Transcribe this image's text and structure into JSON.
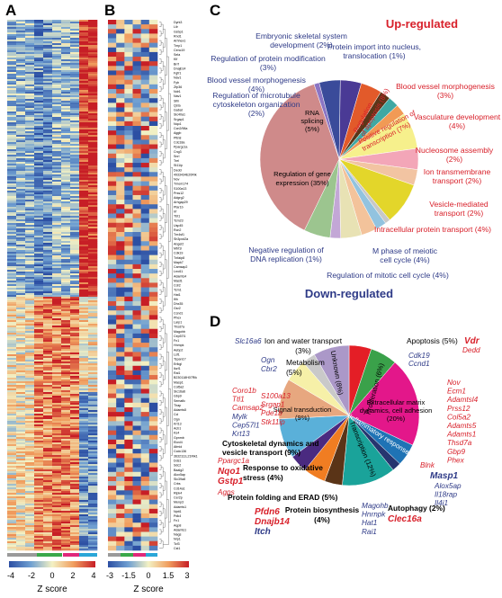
{
  "panels": {
    "a": "A",
    "b": "B",
    "c": "C",
    "d": "D"
  },
  "colors": {
    "up": "#d8202a",
    "down": "#2e3a87",
    "text": "#000000"
  },
  "heatmap_a": {
    "colorbar_ticks": [
      "-4",
      "-2",
      "0",
      "2",
      "4"
    ],
    "colorbar_title": "Z score",
    "group_bar_colors": [
      "#9a9a9a",
      "#3aa84a",
      "#e0287a",
      "#2aa6d8"
    ]
  },
  "heatmap_b": {
    "colorbar_ticks": [
      "-3",
      "-1.5",
      "0",
      "1.5",
      "3"
    ],
    "colorbar_title": "Z score",
    "genes": [
      "Dyrk3",
      "Lilr",
      "Gsbp1",
      "Rnd1",
      "Arhhex1",
      "Tmp1",
      "Cenc19",
      "Sela",
      "Klf",
      "Brrf",
      "Dnajb14",
      "Fgfr1",
      "Nav1",
      "Fyb",
      "Zfp36",
      "Ndr1",
      "Nav1",
      "Slfn",
      "Qsta",
      "Gabat",
      "Slc40a1",
      "Srgap1",
      "Nqo1",
      "Ccn2/98a",
      "Aggb",
      "Pttn8",
      "Cdc18a",
      "Ppargc1a",
      "Cng3",
      "Snrl",
      "Trel",
      "St11ip",
      "Dedd",
      "4933434E20Rik",
      "Nov",
      "Tmem174",
      "S100a13",
      "Prss12",
      "Adgrg2",
      "Arhgap29",
      "Ptar1b",
      "Irf",
      "Tbt1",
      "Tcm23",
      "Usp45",
      "Rcn2",
      "Tm4sf1",
      "Sh3pxd2a",
      "Angel2",
      "Mtrf1l",
      "Cdk19",
      "Tnfaip8",
      "Mapk7",
      "Camsap2",
      "Lrrc61",
      "Adamts4",
      "Mast1",
      "Cdr2",
      "Tcm1",
      "Hat1",
      "Ifih",
      "Dhx35",
      "Gsr2",
      "Ccnd1",
      "Phex",
      "Larp1",
      "Thsd7a",
      "Magohb",
      "Cep57l1",
      "Fn1",
      "Hnmpk",
      "Aebp2",
      "Lsf1",
      "Tspan17",
      "Erlkgl",
      "Ikzf1",
      "Rai1",
      "B230118H07Rik",
      "Masp1",
      "Col5a2",
      "Slc16a6",
      "Gbp9",
      "Semaflc",
      "Tlrap",
      "Adamts5",
      "Ccl",
      "Ogn",
      "Krt13",
      "Acb1",
      "Ks4",
      "Gpnmb",
      "Elovl4",
      "Afmid",
      "Ccdc136",
      "3632111L21Rik1",
      "Dds1",
      "Sdc2",
      "Baalg2",
      "Alox5ap",
      "Slc39a8",
      "Crbs",
      "Cd14a1",
      "Ripk4",
      "Cer2p",
      "Menp3",
      "Adamts1",
      "Nptt1",
      "Pdk4",
      "Fn1",
      "Aqp8",
      "Adamts1",
      "Nags",
      "Nrp1",
      "Tcf3",
      "Cst1"
    ]
  },
  "chart_data": [
    {
      "type": "pie",
      "panel": "C",
      "title": "Up-regulated",
      "subtitle": "Down-regulated",
      "slices": [
        {
          "label": "Regulation of gene expression",
          "value": 35,
          "side": "down",
          "color": "#cf8a8a"
        },
        {
          "label": "Negative regulation of DNA replication",
          "value": 1,
          "side": "down",
          "color": "#8b75c4"
        },
        {
          "label": "Regulation of mitotic cell cycle",
          "value": 4,
          "side": "down",
          "color": "#3a4b9a"
        },
        {
          "label": "M phase of meiotic cell cycle",
          "value": 4,
          "side": "down",
          "color": "#4a3a95"
        },
        {
          "label": "Intracellular protein transport",
          "value": 4,
          "side": "up",
          "color": "#e25a2a"
        },
        {
          "label": "Vesicle-mediated transport",
          "value": 2,
          "side": "up",
          "color": "#5a3618"
        },
        {
          "label": "Ion transmembrane transport",
          "value": 2,
          "side": "up",
          "color": "#3fa8a3"
        },
        {
          "label": "Nucleosome assembly",
          "value": 2,
          "side": "up",
          "color": "#f19a55"
        },
        {
          "label": "Positive regulation of transcription",
          "value": 7,
          "side": "up",
          "color": "#f6f08c"
        },
        {
          "label": "Vasculature development",
          "value": 4,
          "side": "up",
          "color": "#f3a6b8"
        },
        {
          "label": "Blood vessel morphogenesis",
          "value": 3,
          "side": "up",
          "color": "#f2c4a2"
        },
        {
          "label": "Regulation of apoptosis",
          "value": 8,
          "side": "up",
          "color": "#e3d62a"
        },
        {
          "label": "Protein import into nucleus, translocation",
          "value": 1,
          "side": "down",
          "color": "#c8c8c8"
        },
        {
          "label": "Embryonic skeletal system development",
          "value": 2,
          "side": "down",
          "color": "#92c3df"
        },
        {
          "label": "Regulation of protein modification",
          "value": 3,
          "side": "down",
          "color": "#f3c39b"
        },
        {
          "label": "Blood vessel morphogenesis",
          "value": 4,
          "side": "down",
          "color": "#e8e2b4"
        },
        {
          "label": "Regulation of microtubule cytoskeleton organization",
          "value": 2,
          "side": "down",
          "color": "#c3a7d6"
        },
        {
          "label": "RNA splicing",
          "value": 5,
          "side": "down",
          "color": "#9cc58f"
        }
      ]
    },
    {
      "type": "pie",
      "panel": "D",
      "slices": [
        {
          "label": "Apoptosis",
          "value": 5,
          "color": "#e41e26"
        },
        {
          "label": "Proliferation",
          "value": 6,
          "color": "#3aa14a"
        },
        {
          "label": "Extracellular matrix dynamics, cell adhesion",
          "value": 20,
          "color": "#e3178a"
        },
        {
          "label": "Inflammatory response",
          "value": 5,
          "color": "#1f73b5"
        },
        {
          "label": "Autophagy",
          "value": 2,
          "color": "#26356f"
        },
        {
          "label": "Transcription",
          "value": 12,
          "color": "#1aa39a"
        },
        {
          "label": "Protein biosynthesis",
          "value": 4,
          "color": "#5a3417"
        },
        {
          "label": "Protein folding and ERAD",
          "value": 5,
          "color": "#f07d22"
        },
        {
          "label": "Response to oxidative stress",
          "value": 4,
          "color": "#4a2a80"
        },
        {
          "label": "Cytoskeletal dynamics and vesicle transport",
          "value": 9,
          "color": "#5ab0d9"
        },
        {
          "label": "Signal transduction",
          "value": 9,
          "color": "#e7a77f"
        },
        {
          "label": "Metabolism",
          "value": 5,
          "color": "#f6f0a8"
        },
        {
          "label": "Ion and water transport",
          "value": 3,
          "color": "#c9c9c9"
        },
        {
          "label": "Unknown",
          "value": 8,
          "color": "#ab98c8"
        }
      ]
    }
  ],
  "pie_c_text": {
    "up_title": "Up-regulated",
    "down_title": "Down-regulated",
    "outer": {
      "protein_import": [
        "Protein import into nucleus,",
        "translocation (1%)"
      ],
      "embryonic": [
        "Embryonic skeletal system",
        "development (2%)"
      ],
      "reg_protein_mod": [
        "Regulation of protein modification",
        "(3%)"
      ],
      "bv_morph_down": [
        "Blood vessel morphogenesis",
        "(4%)"
      ],
      "microtubule": [
        "Regulation of microtubule",
        "cytoskeleton organization",
        "(2%)"
      ],
      "bv_morph_up": [
        "Blood vessel morphogenesis",
        "(3%)"
      ],
      "vasculature": [
        "Vasculature development",
        "(4%)"
      ],
      "nucleosome": [
        "Nucleosome assembly",
        "(2%)"
      ],
      "ion_trans": [
        "Ion transmembrane",
        "transport (2%)"
      ],
      "vesicle": [
        "Vesicle-mediated",
        "transport (2%)"
      ],
      "intracellular": [
        "Intracellular protein transport (4%)"
      ],
      "m_phase": [
        "M phase of meiotic",
        "cell cycle (4%)"
      ],
      "mitotic": [
        "Regulation of mitotic cell cycle (4%)"
      ],
      "neg_dna": [
        "Negative regulation of",
        "DNA replication (1%)"
      ]
    },
    "inner": {
      "gene_expr": [
        "Regulation of gene",
        "expression (35%)"
      ],
      "rna_splicing": [
        "RNA",
        "splicing",
        "(5%)"
      ],
      "apoptosis": [
        "Regulation",
        "of apoptosis (8%)"
      ],
      "pos_trans": [
        "Positive regulation of",
        "transcription (7%)"
      ]
    }
  },
  "pie_d_text": {
    "apoptosis": {
      "label": "Apoptosis (5%)",
      "genes_up": [
        "Vdr",
        "Dedd"
      ]
    },
    "proliferation": {
      "label": "Proliferation (6%)",
      "genes_down": [
        "Cdk19",
        "Ccnd1"
      ]
    },
    "ecm": {
      "label": [
        "Extracellular matrix",
        "dynamics, cell adhesion",
        "(20%)"
      ],
      "genes_up": [
        "Nov",
        "Ecm1",
        "Adamtsl4",
        "Prss12",
        "Col5a2",
        "Adamts5",
        "Adamts1",
        "Thsd7a",
        "Gbp9",
        "Phex"
      ]
    },
    "inflammatory": {
      "label": "Inflammatory response (5%)",
      "genes_up": [
        "Blnk"
      ],
      "gene_bold": "Masp1",
      "genes_down": [
        "Alox5ap",
        "Il18rap",
        "Il4i1"
      ]
    },
    "autophagy": {
      "label": "Autophagy (2%)",
      "gene_bold": "Clec16a"
    },
    "transcription": {
      "label": "Transcription (12%)",
      "genes": [
        "Magohb",
        "Hnrnpk",
        "Hat1",
        "Rai1"
      ]
    },
    "protein_bio": {
      "label": [
        "Protein biosynthesis",
        "(4%)"
      ]
    },
    "protein_fold": {
      "label": "Protein folding and ERAD (5%)",
      "genes_bold_up": [
        "Pfdn6",
        "Dnajb14"
      ],
      "gene_bold_down": "Itch"
    },
    "oxidative": {
      "label": [
        "Response to oxidative",
        "stress (4%)"
      ],
      "genes_bold": [
        "Nqo1",
        "Gstp1"
      ],
      "genes_up": [
        "Ppargc1a",
        "Agps"
      ]
    },
    "cytoskeletal": {
      "label": [
        "Cytoskeletal dynamics and",
        "vesicle transport (9%)"
      ],
      "genes_up": [
        "Coro1b",
        "Ttl1",
        "Camsap2"
      ],
      "genes_down": [
        "Mylk",
        "Cep57l1",
        "Krt13"
      ]
    },
    "signal": {
      "label": [
        "Signal transduction",
        "(9%)"
      ],
      "genes_up": [
        "S100a13",
        "Srgap1",
        "Pde1b",
        "Stk11ip"
      ]
    },
    "metabolism": {
      "label": [
        "Metabolism",
        "(5%)"
      ],
      "genes_down": [
        "Ogn",
        "Cbr2"
      ]
    },
    "ion_water": {
      "label": [
        "Ion and water  transport",
        "(3%)"
      ],
      "gene_down": "Slc16a6"
    },
    "unknown": {
      "label": "Unknown (8%)"
    }
  }
}
